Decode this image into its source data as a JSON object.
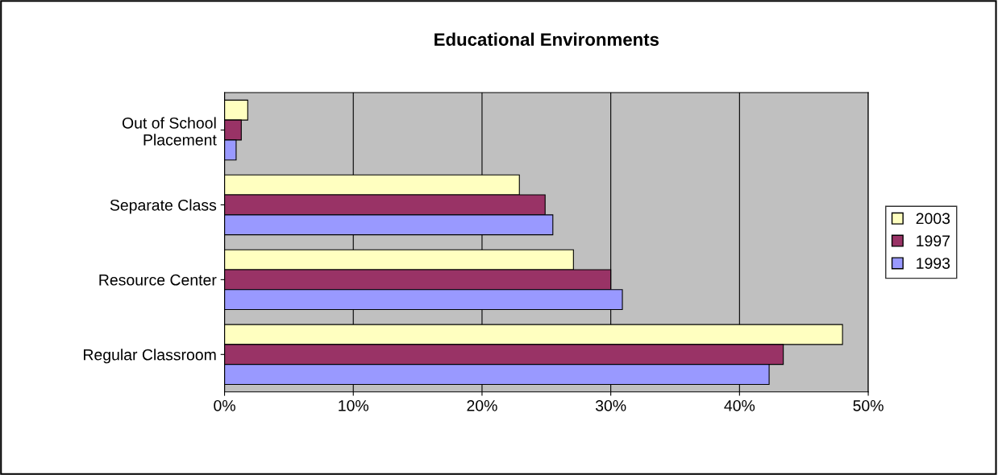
{
  "chart_data": {
    "type": "bar",
    "orientation": "horizontal",
    "title": "Educational Environments",
    "categories": [
      "Out of School\nPlacement",
      "Separate Class",
      "Resource Center",
      "Regular Classroom"
    ],
    "series": [
      {
        "name": "2003",
        "color": "#ffffc0",
        "values": [
          1.8,
          22.9,
          27.1,
          48.0
        ]
      },
      {
        "name": "1997",
        "color": "#993366",
        "values": [
          1.3,
          24.9,
          30.0,
          43.4
        ]
      },
      {
        "name": "1993",
        "color": "#9999ff",
        "values": [
          0.9,
          25.5,
          30.9,
          42.3
        ]
      }
    ],
    "xlim": [
      0,
      50
    ],
    "xticks": [
      {
        "value": 0,
        "label": "0%"
      },
      {
        "value": 10,
        "label": "10%"
      },
      {
        "value": 20,
        "label": "20%"
      },
      {
        "value": 30,
        "label": "30%"
      },
      {
        "value": 40,
        "label": "40%"
      },
      {
        "value": 50,
        "label": "50%"
      }
    ],
    "grid": "x",
    "legend": "right"
  }
}
